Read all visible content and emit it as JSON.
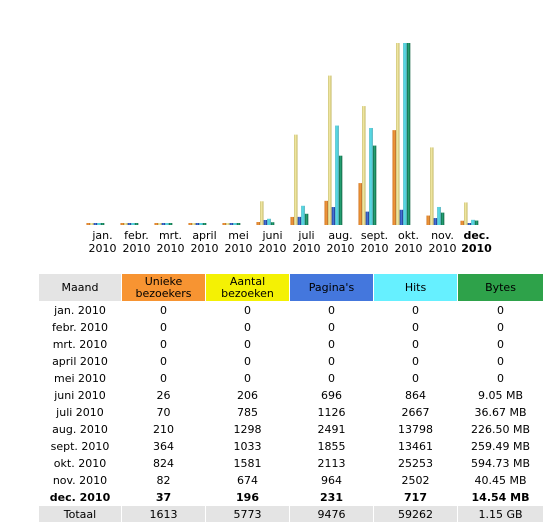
{
  "colors": {
    "visitors": "#f79432",
    "visits": "#f4f104",
    "pages": "#4477dd",
    "hits": "#66f0ff",
    "bytes": "#2ea24a"
  },
  "table": {
    "headers": {
      "month": "Maand",
      "visitors": "Unieke bezoekers",
      "visits": "Aantal bezoeken",
      "pages": "Pagina's",
      "hits": "Hits",
      "bytes": "Bytes"
    },
    "rows": [
      {
        "month": "jan. 2010",
        "visitors": "0",
        "visits": "0",
        "pages": "0",
        "hits": "0",
        "bytes": "0"
      },
      {
        "month": "febr. 2010",
        "visitors": "0",
        "visits": "0",
        "pages": "0",
        "hits": "0",
        "bytes": "0"
      },
      {
        "month": "mrt. 2010",
        "visitors": "0",
        "visits": "0",
        "pages": "0",
        "hits": "0",
        "bytes": "0"
      },
      {
        "month": "april 2010",
        "visitors": "0",
        "visits": "0",
        "pages": "0",
        "hits": "0",
        "bytes": "0"
      },
      {
        "month": "mei 2010",
        "visitors": "0",
        "visits": "0",
        "pages": "0",
        "hits": "0",
        "bytes": "0"
      },
      {
        "month": "juni 2010",
        "visitors": "26",
        "visits": "206",
        "pages": "696",
        "hits": "864",
        "bytes": "9.05 MB"
      },
      {
        "month": "juli 2010",
        "visitors": "70",
        "visits": "785",
        "pages": "1126",
        "hits": "2667",
        "bytes": "36.67 MB"
      },
      {
        "month": "aug. 2010",
        "visitors": "210",
        "visits": "1298",
        "pages": "2491",
        "hits": "13798",
        "bytes": "226.50 MB"
      },
      {
        "month": "sept. 2010",
        "visitors": "364",
        "visits": "1033",
        "pages": "1855",
        "hits": "13461",
        "bytes": "259.49 MB"
      },
      {
        "month": "okt. 2010",
        "visitors": "824",
        "visits": "1581",
        "pages": "2113",
        "hits": "25253",
        "bytes": "594.73 MB"
      },
      {
        "month": "nov. 2010",
        "visitors": "82",
        "visits": "674",
        "pages": "964",
        "hits": "2502",
        "bytes": "40.45 MB"
      },
      {
        "month": "dec. 2010",
        "visitors": "37",
        "visits": "196",
        "pages": "231",
        "hits": "717",
        "bytes": "14.54 MB"
      }
    ],
    "total": {
      "label": "Totaal",
      "visitors": "1613",
      "visits": "5773",
      "pages": "9476",
      "hits": "59262",
      "bytes": "1.15 GB"
    }
  },
  "chart_data": {
    "type": "bar",
    "categories": [
      [
        "jan.",
        "2010"
      ],
      [
        "febr.",
        "2010"
      ],
      [
        "mrt.",
        "2010"
      ],
      [
        "april",
        "2010"
      ],
      [
        "mei",
        "2010"
      ],
      [
        "juni",
        "2010"
      ],
      [
        "juli",
        "2010"
      ],
      [
        "aug.",
        "2010"
      ],
      [
        "sept.",
        "2010"
      ],
      [
        "okt.",
        "2010"
      ],
      [
        "nov.",
        "2010"
      ],
      [
        "dec.",
        "2010"
      ]
    ],
    "current_month_index": 11,
    "series": [
      {
        "key": "visitors",
        "values": [
          0,
          0,
          0,
          0,
          0,
          26,
          70,
          210,
          364,
          824,
          82,
          37
        ]
      },
      {
        "key": "visits",
        "values": [
          0,
          0,
          0,
          0,
          0,
          206,
          785,
          1298,
          1033,
          1581,
          674,
          196
        ]
      },
      {
        "key": "pages",
        "values": [
          0,
          0,
          0,
          0,
          0,
          696,
          1126,
          2491,
          1855,
          2113,
          964,
          231
        ]
      },
      {
        "key": "hits",
        "values": [
          0,
          0,
          0,
          0,
          0,
          864,
          2667,
          13798,
          13461,
          25253,
          2502,
          717
        ]
      },
      {
        "key": "bytes_mb",
        "values": [
          0,
          0,
          0,
          0,
          0,
          9.05,
          36.67,
          226.5,
          259.49,
          594.73,
          40.45,
          14.54
        ]
      }
    ],
    "scale_groups": [
      [
        "visitors",
        "visits"
      ],
      [
        "pages",
        "hits"
      ],
      [
        "bytes_mb"
      ]
    ]
  }
}
